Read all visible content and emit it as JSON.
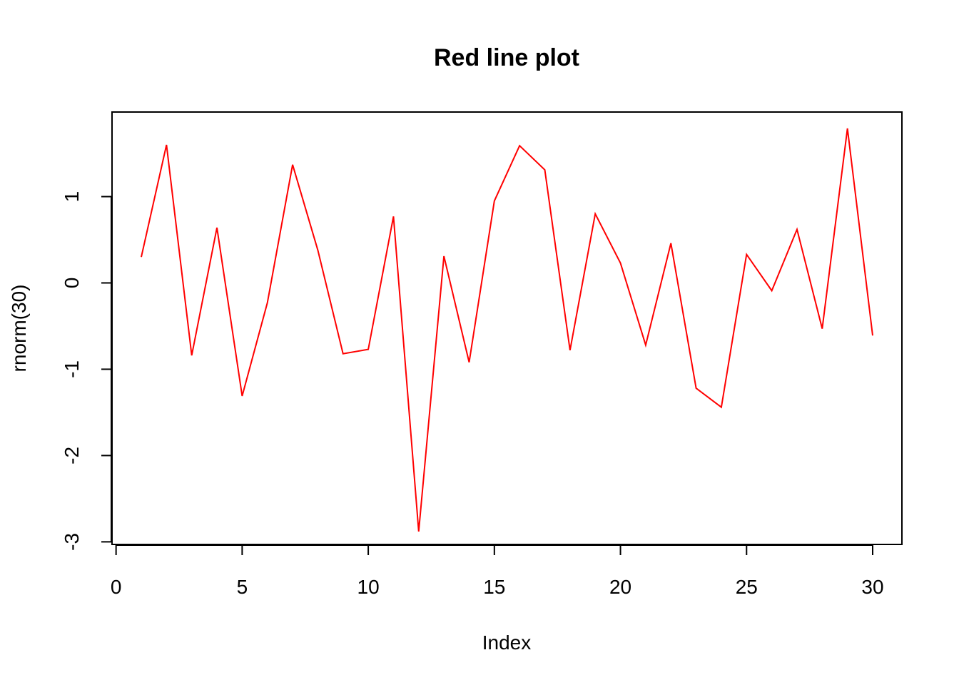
{
  "chart_data": {
    "type": "line",
    "title": "Red line plot",
    "xlabel": "Index",
    "ylabel": "rnorm(30)",
    "line_color": "#ff0000",
    "x_ticks": [
      0,
      5,
      10,
      15,
      20,
      25,
      30
    ],
    "y_ticks": [
      -3,
      -2,
      -1,
      0,
      1
    ],
    "xlim": [
      -0.16,
      31.16
    ],
    "ylim": [
      -3.03,
      1.98
    ],
    "x": [
      1,
      2,
      3,
      4,
      5,
      6,
      7,
      8,
      9,
      10,
      11,
      12,
      13,
      14,
      15,
      16,
      17,
      18,
      19,
      20,
      21,
      22,
      23,
      24,
      25,
      26,
      27,
      28,
      29,
      30
    ],
    "y": [
      0.3,
      1.6,
      -0.84,
      0.64,
      -1.31,
      -0.23,
      1.37,
      0.38,
      -0.82,
      -0.77,
      0.77,
      -2.88,
      0.31,
      -0.92,
      0.95,
      1.59,
      1.31,
      -0.78,
      0.8,
      0.23,
      -0.72,
      0.46,
      -1.22,
      -1.44,
      0.33,
      -0.09,
      0.62,
      -0.53,
      1.79,
      -0.61
    ],
    "grid": false,
    "legend": "none"
  }
}
